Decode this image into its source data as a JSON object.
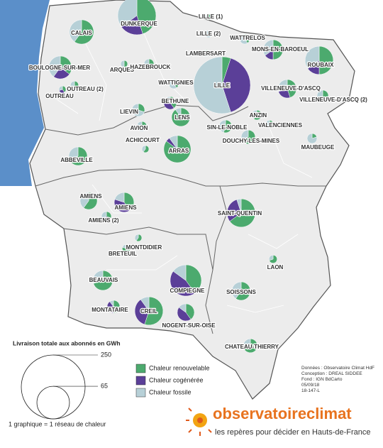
{
  "map": {
    "colors": {
      "renouvelable": "#4caa6e",
      "cogeneree": "#5b3f98",
      "fossile": "#b7d0d7"
    },
    "networks": [
      {
        "label": "DUNKERQUE",
        "total": 90,
        "shares": [
          45,
          20,
          35
        ]
      },
      {
        "label": "CALAIS",
        "total": 36,
        "shares": [
          60,
          0,
          40
        ]
      },
      {
        "label": "LILLE (1)",
        "total": 2,
        "shares": [
          50,
          0,
          50
        ]
      },
      {
        "label": "LILLE (2)",
        "total": 3,
        "shares": [
          40,
          0,
          60
        ]
      },
      {
        "label": "WATTRELOS",
        "total": 6,
        "shares": [
          40,
          0,
          60
        ]
      },
      {
        "label": "LAMBERSART",
        "total": 3,
        "shares": [
          30,
          0,
          70
        ]
      },
      {
        "label": "MONS-EN-BAROEUL",
        "total": 24,
        "shares": [
          50,
          15,
          35
        ]
      },
      {
        "label": "ROUBAIX",
        "total": 49,
        "shares": [
          50,
          15,
          35
        ]
      },
      {
        "label": "BOULOGNE-SUR-MER",
        "total": 32,
        "shares": [
          35,
          25,
          40
        ]
      },
      {
        "label": "ARQUES",
        "total": 3,
        "shares": [
          50,
          0,
          50
        ]
      },
      {
        "label": "HAZEBROUCK",
        "total": 6,
        "shares": [
          60,
          0,
          40
        ]
      },
      {
        "label": "LILLE",
        "total": 198,
        "shares": [
          5,
          40,
          55
        ]
      },
      {
        "label": "OUTREAU (2)",
        "total": 4,
        "shares": [
          60,
          0,
          40
        ]
      },
      {
        "label": "OUTREAU",
        "total": 3,
        "shares": [
          40,
          30,
          30
        ]
      },
      {
        "label": "WATTIGNIES",
        "total": 6,
        "shares": [
          40,
          0,
          60
        ]
      },
      {
        "label": "VILLENEUVE-D'ASCQ",
        "total": 21,
        "shares": [
          45,
          25,
          30
        ]
      },
      {
        "label": "VILLENEUVE-D'ASCQ (2)",
        "total": 8,
        "shares": [
          60,
          0,
          40
        ]
      },
      {
        "label": "BETHUNE",
        "total": 10,
        "shares": [
          40,
          35,
          25
        ]
      },
      {
        "label": "LIEVIN",
        "total": 10,
        "shares": [
          30,
          0,
          70
        ]
      },
      {
        "label": "LENS",
        "total": 21,
        "shares": [
          90,
          0,
          10
        ]
      },
      {
        "label": "ANZIN",
        "total": 6,
        "shares": [
          60,
          0,
          40
        ]
      },
      {
        "label": "VALENCIENNES",
        "total": 4,
        "shares": [
          50,
          0,
          50
        ]
      },
      {
        "label": "AVION",
        "total": 6,
        "shares": [
          40,
          0,
          60
        ]
      },
      {
        "label": "SIN-LE-NOBLE",
        "total": 10,
        "shares": [
          55,
          0,
          45
        ]
      },
      {
        "label": "DOUCHY-LES-MINES",
        "total": 12,
        "shares": [
          70,
          0,
          30
        ]
      },
      {
        "label": "ACHICOURT",
        "total": 3,
        "shares": [
          60,
          0,
          40
        ]
      },
      {
        "label": "ARRAS",
        "total": 45,
        "shares": [
          85,
          5,
          10
        ]
      },
      {
        "label": "MAUBEUGE",
        "total": 6,
        "shares": [
          20,
          0,
          80
        ]
      },
      {
        "label": "ABBEVILLE",
        "total": 21,
        "shares": [
          70,
          0,
          30
        ]
      },
      {
        "label": "AMIENS",
        "total": 18,
        "shares": [
          60,
          0,
          40
        ]
      },
      {
        "label": "AMIENS",
        "total": 24,
        "shares": [
          40,
          40,
          20
        ]
      },
      {
        "label": "AMIENS (2)",
        "total": 6,
        "shares": [
          30,
          40,
          30
        ]
      },
      {
        "label": "SAINT-QUENTIN",
        "total": 49,
        "shares": [
          65,
          30,
          5
        ]
      },
      {
        "label": "MONTDIDIER",
        "total": 3,
        "shares": [
          60,
          0,
          40
        ]
      },
      {
        "label": "BRETEUIL",
        "total": 4,
        "shares": [
          80,
          0,
          20
        ]
      },
      {
        "label": "LAON",
        "total": 4,
        "shares": [
          70,
          0,
          30
        ]
      },
      {
        "label": "BEAUVAIS",
        "total": 24,
        "shares": [
          70,
          0,
          30
        ]
      },
      {
        "label": "COMPIEGNE",
        "total": 60,
        "shares": [
          40,
          45,
          15
        ]
      },
      {
        "label": "SOISSONS",
        "total": 21,
        "shares": [
          60,
          0,
          40
        ]
      },
      {
        "label": "MONTATAIRE",
        "total": 10,
        "shares": [
          50,
          40,
          10
        ]
      },
      {
        "label": "CREIL",
        "total": 49,
        "shares": [
          55,
          35,
          10
        ]
      },
      {
        "label": "NOGENT-SUR-OISE",
        "total": 18,
        "shares": [
          40,
          45,
          15
        ]
      },
      {
        "label": "CHATEAU-THIERRY",
        "total": 12,
        "shares": [
          70,
          0,
          30
        ]
      }
    ],
    "legend": {
      "title": "Livraison totale aux abonnés en GWh",
      "sizes": [
        250,
        65
      ],
      "note": "1 graphique = 1 réseau de chaleur",
      "items": [
        "Chaleur renouvelable",
        "Chaleur cogénérée",
        "Chaleur fossile"
      ]
    },
    "credits": [
      "Données : Observatoire Climat HdF",
      "Conception : DREAL SIDDEE",
      "Fond : IGN BdCarto",
      "05/09/18",
      "18-147-L"
    ],
    "logo": {
      "name": "observatoireclimat",
      "tagline": "les repères pour décider en Hauts-de-France"
    }
  }
}
